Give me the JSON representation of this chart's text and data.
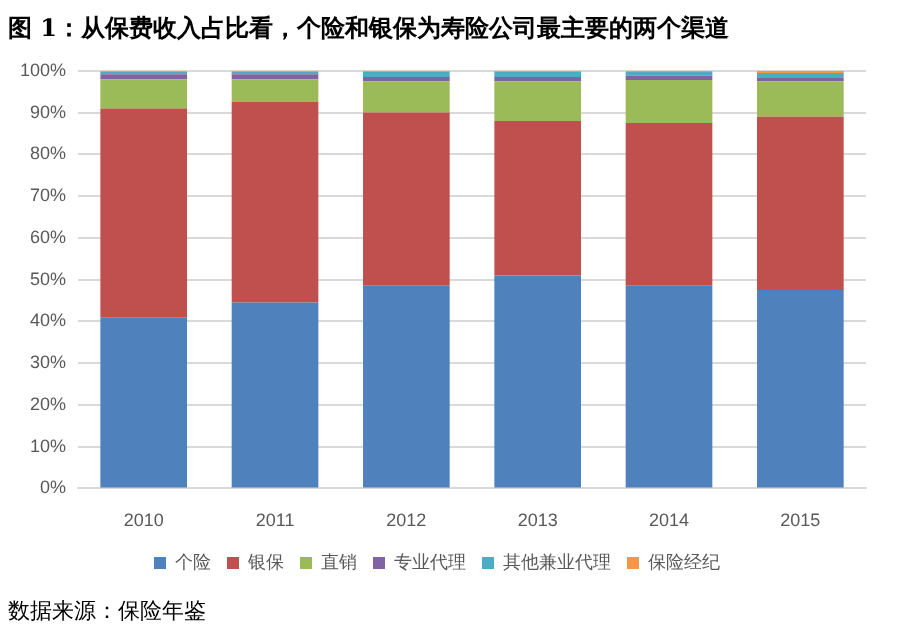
{
  "chart_data": {
    "type": "bar",
    "title": "图 1：从保费收入占比看，个险和银保为寿险公司最主要的两个渠道",
    "stacked": true,
    "categories": [
      "2010",
      "2011",
      "2012",
      "2013",
      "2014",
      "2015"
    ],
    "series": [
      {
        "name": "个险",
        "color": "#4f81bd",
        "values": [
          41,
          44.5,
          48.5,
          51,
          48.5,
          47.5
        ]
      },
      {
        "name": "银保",
        "color": "#c0504d",
        "values": [
          50,
          48,
          41.5,
          37,
          39,
          41.5
        ]
      },
      {
        "name": "直销",
        "color": "#9bbb59",
        "values": [
          7,
          5.5,
          7.5,
          9.5,
          10.3,
          8.5
        ]
      },
      {
        "name": "专业代理",
        "color": "#8064a2",
        "values": [
          1.2,
          1.2,
          1,
          1,
          1,
          0.8
        ]
      },
      {
        "name": "其他兼业代理",
        "color": "#4bacc6",
        "values": [
          0.6,
          0.6,
          1.3,
          1.3,
          0.9,
          1.2
        ]
      },
      {
        "name": "保险经纪",
        "color": "#f79646",
        "values": [
          0.2,
          0.2,
          0.2,
          0.2,
          0.3,
          0.5
        ]
      }
    ],
    "ylim": [
      0,
      100
    ],
    "yticks": [
      {
        "value": 0,
        "label": "0%"
      },
      {
        "value": 10,
        "label": "10%"
      },
      {
        "value": 20,
        "label": "20%"
      },
      {
        "value": 30,
        "label": "30%"
      },
      {
        "value": 40,
        "label": "40%"
      },
      {
        "value": 50,
        "label": "50%"
      },
      {
        "value": 60,
        "label": "60%"
      },
      {
        "value": 70,
        "label": "70%"
      },
      {
        "value": 80,
        "label": "80%"
      },
      {
        "value": 90,
        "label": "90%"
      },
      {
        "value": 100,
        "label": "100%"
      }
    ],
    "grid": "y",
    "legend": "bottom",
    "annotations": [
      "数据来源：保险年鉴"
    ]
  }
}
